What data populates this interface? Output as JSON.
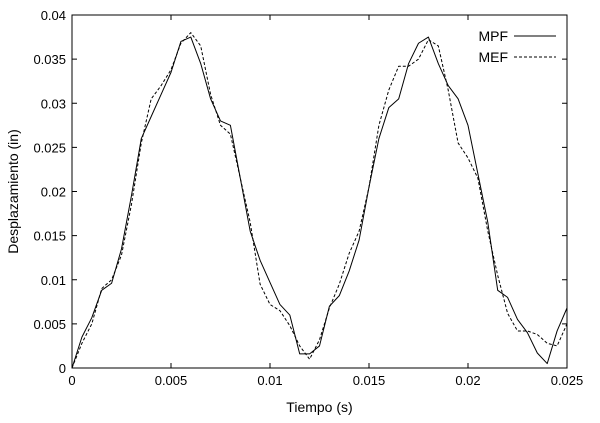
{
  "chart_data": {
    "type": "line",
    "xlabel": "Tiempo (s)",
    "ylabel": "Desplazamiento (in)",
    "xlim": [
      0,
      0.025
    ],
    "ylim": [
      0,
      0.04
    ],
    "grid": false,
    "legend_position": "top-right",
    "xticks": [
      "0",
      "0.005",
      "0.01",
      "0.015",
      "0.02",
      "0.025"
    ],
    "yticks": [
      "0",
      "0.005",
      "0.01",
      "0.015",
      "0.02",
      "0.025",
      "0.03",
      "0.035",
      "0.04"
    ],
    "series": [
      {
        "name": "MPF",
        "style": "solid",
        "x": [
          0,
          0.0005,
          0.001,
          0.0015,
          0.002,
          0.0025,
          0.003,
          0.0035,
          0.004,
          0.0045,
          0.005,
          0.0055,
          0.006,
          0.0065,
          0.007,
          0.0075,
          0.008,
          0.0085,
          0.009,
          0.0095,
          0.01,
          0.0105,
          0.011,
          0.0115,
          0.012,
          0.0125,
          0.013,
          0.0135,
          0.014,
          0.0145,
          0.015,
          0.0155,
          0.016,
          0.0165,
          0.017,
          0.0175,
          0.018,
          0.0185,
          0.019,
          0.0195,
          0.02,
          0.0205,
          0.021,
          0.0215,
          0.022,
          0.0225,
          0.023,
          0.0235,
          0.024,
          0.0245,
          0.025
        ],
        "values": [
          0,
          0.0035,
          0.0057,
          0.0088,
          0.0096,
          0.0135,
          0.0195,
          0.026,
          0.0285,
          0.031,
          0.0335,
          0.037,
          0.0375,
          0.0345,
          0.0305,
          0.028,
          0.0275,
          0.0215,
          0.0155,
          0.0122,
          0.0097,
          0.0072,
          0.006,
          0.0016,
          0.0016,
          0.0025,
          0.007,
          0.0082,
          0.011,
          0.0145,
          0.0205,
          0.026,
          0.0295,
          0.0305,
          0.0345,
          0.0368,
          0.0375,
          0.0345,
          0.032,
          0.0305,
          0.0275,
          0.022,
          0.0165,
          0.0088,
          0.008,
          0.0055,
          0.004,
          0.0017,
          0.0005,
          0.0042,
          0.0068
        ]
      },
      {
        "name": "MEF",
        "style": "dashed",
        "x": [
          0,
          0.0005,
          0.001,
          0.0015,
          0.002,
          0.0025,
          0.003,
          0.0035,
          0.004,
          0.0045,
          0.005,
          0.0055,
          0.006,
          0.0065,
          0.007,
          0.0075,
          0.008,
          0.0085,
          0.009,
          0.0095,
          0.01,
          0.0105,
          0.011,
          0.0115,
          0.012,
          0.0125,
          0.013,
          0.0135,
          0.014,
          0.0145,
          0.015,
          0.0155,
          0.016,
          0.0165,
          0.017,
          0.0175,
          0.018,
          0.0185,
          0.019,
          0.0195,
          0.02,
          0.0205,
          0.021,
          0.0215,
          0.022,
          0.0225,
          0.023,
          0.0235,
          0.024,
          0.0245,
          0.025
        ],
        "values": [
          0,
          0.0028,
          0.005,
          0.009,
          0.01,
          0.0128,
          0.0185,
          0.0255,
          0.0305,
          0.032,
          0.0338,
          0.0368,
          0.038,
          0.0365,
          0.031,
          0.0275,
          0.0265,
          0.0215,
          0.0165,
          0.0095,
          0.0072,
          0.0065,
          0.0048,
          0.0025,
          0.001,
          0.0032,
          0.0068,
          0.0095,
          0.013,
          0.0155,
          0.0205,
          0.0275,
          0.0315,
          0.0342,
          0.0342,
          0.035,
          0.0372,
          0.0365,
          0.0315,
          0.0255,
          0.0238,
          0.0215,
          0.0155,
          0.0105,
          0.0062,
          0.0042,
          0.0042,
          0.0038,
          0.0028,
          0.0025,
          0.005
        ]
      }
    ]
  }
}
